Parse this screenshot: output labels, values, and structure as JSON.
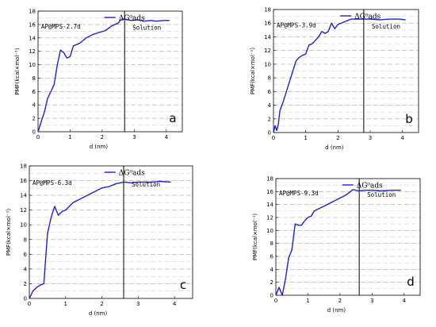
{
  "chart_data": [
    {
      "type": "line",
      "panel_label": "a",
      "annotation": "AP@MPS-2.7d",
      "region_label": "Solution",
      "divider_x": 2.7,
      "xlabel": "d (nm)",
      "ylabel": "PMF(kcal×mol⁻¹)",
      "xlim": [
        0,
        4.5
      ],
      "ylim": [
        0,
        18
      ],
      "xticks": [
        0,
        1,
        2,
        3,
        4
      ],
      "yticks": [
        0,
        2,
        4,
        6,
        8,
        10,
        12,
        14,
        16,
        18
      ],
      "grid": "horizontal dashed",
      "legend_position": "top-right",
      "color": "#1f1fd6",
      "series": [
        {
          "name": "ΔG⁰ads",
          "x": [
            0,
            0.1,
            0.2,
            0.3,
            0.4,
            0.5,
            0.6,
            0.7,
            0.8,
            0.9,
            1.0,
            1.1,
            1.2,
            1.3,
            1.5,
            1.7,
            1.9,
            2.1,
            2.3,
            2.5,
            2.6,
            2.7,
            2.9,
            3.1,
            3.3,
            3.5,
            3.7,
            3.9,
            4.1
          ],
          "y": [
            0,
            1.5,
            3.0,
            5.0,
            6.0,
            7.0,
            10.0,
            12.2,
            11.8,
            11.0,
            11.2,
            12.8,
            13.0,
            13.2,
            14.0,
            14.5,
            14.8,
            15.1,
            15.8,
            16.2,
            16.8,
            16.8,
            16.6,
            16.7,
            16.5,
            16.6,
            16.5,
            16.6,
            16.6
          ]
        }
      ]
    },
    {
      "type": "line",
      "panel_label": "b",
      "annotation": "AP@MPS-3.9d",
      "region_label": "Solution",
      "divider_x": 2.8,
      "xlabel": "d (nm)",
      "ylabel": "PMF(kcal×mol⁻¹)",
      "xlim": [
        0,
        4.5
      ],
      "ylim": [
        0,
        18
      ],
      "xticks": [
        0,
        1,
        2,
        3,
        4
      ],
      "yticks": [
        0,
        2,
        4,
        6,
        8,
        10,
        12,
        14,
        16,
        18
      ],
      "grid": "horizontal dashed",
      "legend_position": "top-right",
      "color": "#1f1fd6",
      "series": [
        {
          "name": "ΔG⁰ads",
          "x": [
            0,
            0.05,
            0.1,
            0.15,
            0.2,
            0.3,
            0.4,
            0.5,
            0.6,
            0.7,
            0.8,
            0.9,
            1.0,
            1.1,
            1.2,
            1.3,
            1.4,
            1.5,
            1.6,
            1.7,
            1.8,
            1.9,
            2.0,
            2.2,
            2.4,
            2.6,
            2.8,
            3.0,
            3.3,
            3.6,
            3.9,
            4.1
          ],
          "y": [
            0,
            1.0,
            0.3,
            1.2,
            3.2,
            4.5,
            6.0,
            7.5,
            9.0,
            10.5,
            11.0,
            11.3,
            11.5,
            12.8,
            13.0,
            13.5,
            14.0,
            14.8,
            14.5,
            14.8,
            16.0,
            15.2,
            15.8,
            16.2,
            16.6,
            16.6,
            16.6,
            16.6,
            16.5,
            16.6,
            16.6,
            16.5
          ]
        }
      ]
    },
    {
      "type": "line",
      "panel_label": "c",
      "annotation": "AP@MPS-6.3d",
      "region_label": "Solution",
      "divider_x": 2.6,
      "xlabel": "d (nm)",
      "ylabel": "PMF(kcal×mol⁻¹)",
      "xlim": [
        0,
        4.5
      ],
      "ylim": [
        0,
        18
      ],
      "xticks": [
        0,
        1,
        2,
        3,
        4
      ],
      "yticks": [
        0,
        2,
        4,
        6,
        8,
        10,
        12,
        14,
        16,
        18
      ],
      "grid": "horizontal dashed",
      "legend_position": "top-right",
      "color": "#1f1fd6",
      "series": [
        {
          "name": "ΔG⁰ads",
          "x": [
            0,
            0.1,
            0.2,
            0.3,
            0.4,
            0.5,
            0.6,
            0.7,
            0.8,
            0.9,
            1.0,
            1.1,
            1.2,
            1.4,
            1.6,
            1.8,
            2.0,
            2.2,
            2.4,
            2.6,
            2.8,
            3.0,
            3.2,
            3.4,
            3.6,
            3.9
          ],
          "y": [
            0,
            1.0,
            1.5,
            1.8,
            2.0,
            8.8,
            11.0,
            12.5,
            11.3,
            11.8,
            12.0,
            12.5,
            13.0,
            13.5,
            14.0,
            14.5,
            15.0,
            15.2,
            15.6,
            15.8,
            15.7,
            15.8,
            15.8,
            15.8,
            15.9,
            15.8
          ]
        }
      ]
    },
    {
      "type": "line",
      "panel_label": "d",
      "annotation": "AP@MPS-9.3d",
      "region_label": "Solution",
      "divider_x": 2.6,
      "xlabel": "d (nm)",
      "ylabel": "PMF(kcal×mol⁻¹)",
      "xlim": [
        0,
        4.5
      ],
      "ylim": [
        0,
        18
      ],
      "xticks": [
        0,
        1,
        2,
        3,
        4
      ],
      "yticks": [
        0,
        2,
        4,
        6,
        8,
        10,
        12,
        14,
        16,
        18
      ],
      "grid": "horizontal dashed",
      "legend_position": "top-right",
      "color": "#1f1fd6",
      "series": [
        {
          "name": "ΔG⁰ads",
          "x": [
            0,
            0.1,
            0.2,
            0.3,
            0.4,
            0.5,
            0.6,
            0.7,
            0.8,
            0.9,
            1.0,
            1.1,
            1.2,
            1.4,
            1.6,
            1.8,
            2.0,
            2.2,
            2.4,
            2.6,
            2.8,
            3.0,
            3.3,
            3.6,
            3.9
          ],
          "y": [
            0,
            1.2,
            0.0,
            2.5,
            5.8,
            7.0,
            11.0,
            10.8,
            10.8,
            11.5,
            12.0,
            12.2,
            13.0,
            13.5,
            14.0,
            14.5,
            15.0,
            15.5,
            16.3,
            16.1,
            16.2,
            16.2,
            16.1,
            16.2,
            16.2
          ]
        }
      ]
    }
  ]
}
